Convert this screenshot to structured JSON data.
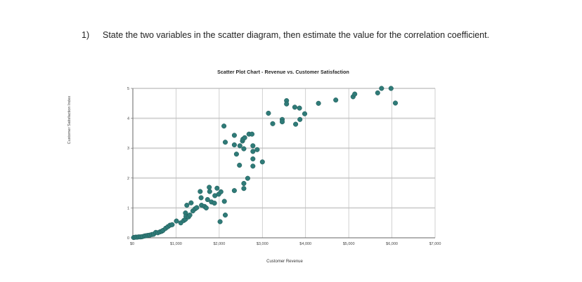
{
  "question": {
    "number": "1)",
    "text": "State the two variables in the scatter diagram, then estimate the value for the correlation coefficient."
  },
  "colors": {
    "marker": "#2f7b78",
    "marker_edge": "#1d5654",
    "grid": "#d4d4d4",
    "axis": "#666666",
    "text": "#222222"
  },
  "chart_data": {
    "type": "scatter",
    "title": "Scatter Plot Chart -  Revenue vs. Customer Satisfaction",
    "xlabel": "Customer Revenue",
    "ylabel": "Customer Satisfaction Index",
    "xlim": [
      0,
      7000
    ],
    "ylim": [
      0,
      5
    ],
    "xticks": [
      0,
      1000,
      2000,
      3000,
      4000,
      5000,
      6000,
      7000
    ],
    "xtick_labels": [
      "$0",
      "$1,000",
      "$2,000",
      "$3,000",
      "$4,000",
      "$5,000",
      "$6,000",
      "$7,000"
    ],
    "yticks": [
      0,
      1,
      2,
      3,
      4,
      5
    ],
    "ytick_labels": [
      "0",
      "1",
      "2",
      "3",
      "4",
      "5"
    ],
    "grid": true,
    "legend": null,
    "points": [
      [
        20,
        0.01
      ],
      [
        60,
        0.02
      ],
      [
        100,
        0.02
      ],
      [
        140,
        0.03
      ],
      [
        180,
        0.03
      ],
      [
        220,
        0.04
      ],
      [
        270,
        0.06
      ],
      [
        310,
        0.07
      ],
      [
        350,
        0.08
      ],
      [
        390,
        0.09
      ],
      [
        440,
        0.11
      ],
      [
        480,
        0.12
      ],
      [
        530,
        0.18
      ],
      [
        580,
        0.17
      ],
      [
        630,
        0.2
      ],
      [
        670,
        0.22
      ],
      [
        700,
        0.25
      ],
      [
        760,
        0.32
      ],
      [
        810,
        0.37
      ],
      [
        860,
        0.42
      ],
      [
        910,
        0.44
      ],
      [
        1010,
        0.56
      ],
      [
        1110,
        0.5
      ],
      [
        1180,
        0.58
      ],
      [
        1220,
        0.62
      ],
      [
        1220,
        0.83
      ],
      [
        1230,
        0.72
      ],
      [
        1250,
        1.09
      ],
      [
        1290,
        0.7
      ],
      [
        1320,
        0.76
      ],
      [
        1350,
        1.17
      ],
      [
        1390,
        0.9
      ],
      [
        1440,
        0.97
      ],
      [
        1480,
        1.01
      ],
      [
        1560,
        1.55
      ],
      [
        1580,
        1.34
      ],
      [
        1590,
        1.09
      ],
      [
        1660,
        1.05
      ],
      [
        1700,
        1.0
      ],
      [
        1730,
        1.28
      ],
      [
        1770,
        1.69
      ],
      [
        1780,
        1.55
      ],
      [
        1820,
        1.2
      ],
      [
        1890,
        1.16
      ],
      [
        1900,
        1.41
      ],
      [
        1950,
        1.66
      ],
      [
        1990,
        1.46
      ],
      [
        2020,
        0.54
      ],
      [
        2040,
        1.54
      ],
      [
        2120,
        1.22
      ],
      [
        2140,
        0.76
      ],
      [
        2110,
        3.74
      ],
      [
        2140,
        3.2
      ],
      [
        2350,
        3.43
      ],
      [
        2350,
        3.11
      ],
      [
        2350,
        1.58
      ],
      [
        2400,
        2.8
      ],
      [
        2470,
        2.43
      ],
      [
        2480,
        3.08
      ],
      [
        2540,
        3.24
      ],
      [
        2550,
        3.3
      ],
      [
        2570,
        2.98
      ],
      [
        2590,
        3.35
      ],
      [
        2570,
        1.82
      ],
      [
        2570,
        1.65
      ],
      [
        2660,
        1.99
      ],
      [
        2690,
        3.47
      ],
      [
        2760,
        3.47
      ],
      [
        2780,
        3.08
      ],
      [
        2780,
        2.89
      ],
      [
        2780,
        2.64
      ],
      [
        2780,
        2.4
      ],
      [
        2880,
        2.95
      ],
      [
        3000,
        2.54
      ],
      [
        3140,
        4.17
      ],
      [
        3240,
        3.82
      ],
      [
        3460,
        3.96
      ],
      [
        3460,
        3.88
      ],
      [
        3560,
        4.59
      ],
      [
        3560,
        4.48
      ],
      [
        3750,
        4.37
      ],
      [
        3860,
        4.34
      ],
      [
        3770,
        3.8
      ],
      [
        3870,
        3.96
      ],
      [
        3980,
        4.15
      ],
      [
        4300,
        4.5
      ],
      [
        4700,
        4.61
      ],
      [
        5100,
        4.72
      ],
      [
        5140,
        4.81
      ],
      [
        5670,
        4.85
      ],
      [
        5760,
        5.0
      ],
      [
        5980,
        5.0
      ],
      [
        6080,
        4.51
      ]
    ]
  }
}
